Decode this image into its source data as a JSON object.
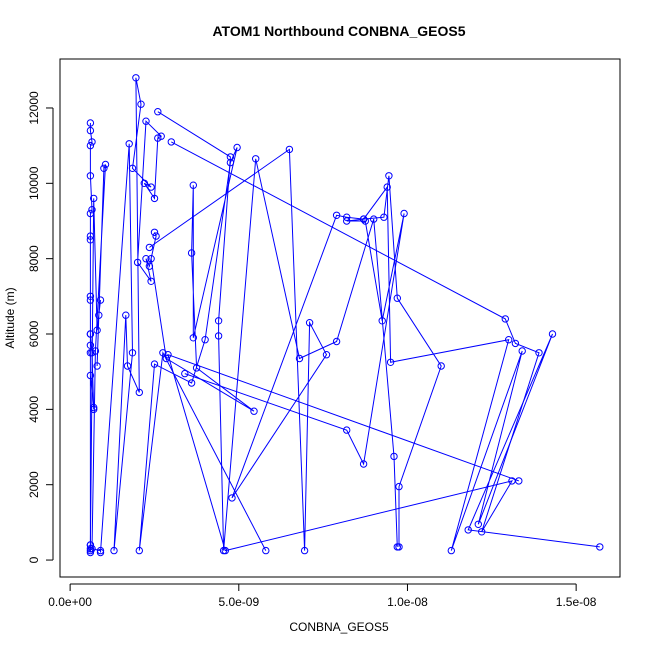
{
  "chart_data": {
    "type": "line",
    "title": "ATOM1 Northbound CONBNA_GEOS5",
    "xlabel": "CONBNA_GEOS5",
    "ylabel": "Altitude (m)",
    "xlim": [
      -3e-10,
      1.63e-08
    ],
    "ylim": [
      -450,
      13300
    ],
    "x_ticks": [
      0,
      5e-09,
      1e-08,
      1.5e-08
    ],
    "x_tick_labels": [
      "0.0e+00",
      "5.0e-09",
      "1.0e-08",
      "1.5e-08"
    ],
    "y_ticks": [
      0,
      2000,
      4000,
      6000,
      8000,
      10000,
      12000
    ],
    "y_tick_labels": [
      "0",
      "2000",
      "4000",
      "6000",
      "8000",
      "10000",
      "12000"
    ],
    "grid": false,
    "legend": "none",
    "colors": {
      "series": "#0000ff",
      "axes": "#000000",
      "background": "#ffffff"
    },
    "series": [
      {
        "x": [
          6e-10,
          6e-10,
          6.5e-10,
          6e-10,
          6e-10,
          6.5e-10,
          6e-10,
          6e-10,
          6e-10,
          6e-10,
          6e-10,
          6e-10,
          6e-10,
          6e-10,
          6e-10,
          7e-10,
          7e-10,
          6.5e-10,
          6e-10,
          6e-10,
          6e-10,
          6e-10,
          6e-10
        ],
        "y": [
          11600,
          11400,
          11100,
          11000,
          10200,
          9300,
          9200,
          8600,
          8500,
          7000,
          6900,
          6000,
          5700,
          5500,
          4900,
          4050,
          4000,
          5500,
          6000,
          400,
          300,
          250,
          200
        ]
      },
      {
        "x": [
          6e-10,
          7e-10,
          8e-10,
          9e-10,
          8.5e-10,
          8e-10,
          1e-09,
          1.05e-09,
          7.5e-10,
          6.5e-10,
          9e-10
        ],
        "y": [
          400,
          9600,
          6100,
          6900,
          6500,
          5150,
          10400,
          10500,
          5550,
          300,
          250
        ]
      },
      {
        "x": [
          9e-10,
          1.75e-09,
          1.85e-09,
          1.3e-09,
          1.65e-09,
          1.7e-09,
          2.05e-09,
          1.95e-09,
          2.1e-09,
          1.85e-09,
          2.4e-09,
          2.2e-09,
          2.5e-09,
          2.6e-09,
          2.7e-09,
          2.25e-09,
          2e-09,
          2.4e-09,
          2.25e-09,
          2.35e-09,
          2.55e-09,
          2.5e-09
        ],
        "y": [
          200,
          11050,
          5500,
          250,
          6500,
          5150,
          4450,
          12800,
          12100,
          10400,
          9900,
          10000,
          9600,
          11200,
          11250,
          11650,
          7900,
          7400,
          8000,
          7800,
          8600,
          8700
        ]
      },
      {
        "x": [
          2.4e-09,
          2.85e-09,
          5.45e-09,
          3.75e-09,
          3.6e-09,
          3.65e-09,
          3.65e-09,
          4.95e-09,
          4.75e-09,
          4e-09,
          3.6e-09,
          2.5e-09,
          2.05e-09,
          2.75e-09,
          5.8e-09
        ],
        "y": [
          8000,
          5350,
          3950,
          5100,
          8150,
          9950,
          5900,
          10950,
          10550,
          5850,
          4700,
          5200,
          250,
          5500,
          250
        ]
      },
      {
        "x": [
          2.6e-09,
          4.75e-09,
          4.4e-09,
          4.4e-09,
          4.55e-09,
          5.5e-09,
          6.8e-09,
          7.9e-09,
          9e-09,
          9.6e-09,
          9.7e-09
        ],
        "y": [
          11900,
          10700,
          6350,
          5950,
          250,
          10650,
          5350,
          5800,
          9050,
          2750,
          350
        ]
      },
      {
        "x": [
          2.35e-09,
          6.5e-09,
          6.95e-09,
          7.1e-09,
          7.6e-09,
          4.8e-09,
          7.9e-09,
          8.2e-09,
          8.7e-09,
          9.3e-09,
          9.45e-09,
          9.7e-09,
          1.1e-08,
          9.75e-09,
          9.75e-09
        ],
        "y": [
          8300,
          10900,
          250,
          6300,
          5450,
          1650,
          9150,
          9100,
          9050,
          9100,
          10200,
          6950,
          5150,
          1950,
          350
        ]
      },
      {
        "x": [
          3.4e-09,
          8.2e-09,
          8.7e-09,
          9.9e-09,
          9.25e-09,
          8.75e-09,
          8.2e-09,
          8.7e-09,
          9.4e-09,
          9.5e-09,
          1.3e-08,
          1.13e-08,
          1.34e-08,
          1.21e-08,
          1.43e-08,
          1.18e-08,
          1.57e-08
        ],
        "y": [
          4950,
          3450,
          2550,
          9200,
          6350,
          9000,
          9000,
          9050,
          9900,
          5250,
          5850,
          250,
          5550,
          950,
          6000,
          800,
          350
        ]
      },
      {
        "x": [
          3e-09,
          1.29e-08,
          1.32e-08,
          1.39e-08,
          1.22e-08,
          1.31e-08,
          4.6e-09,
          2.9e-09,
          1.33e-08
        ],
        "y": [
          11100,
          6400,
          5750,
          5500,
          750,
          2100,
          250,
          5450,
          2100
        ]
      }
    ]
  }
}
